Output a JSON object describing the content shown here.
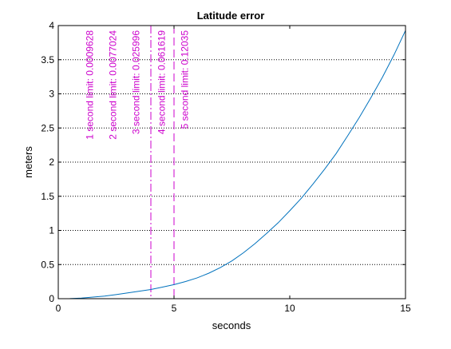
{
  "chart_data": {
    "type": "line",
    "title": "Latitude error",
    "xlabel": "seconds",
    "ylabel": "meters",
    "xlim": [
      0,
      15
    ],
    "ylim": [
      0,
      4
    ],
    "xticks": [
      0,
      5,
      10,
      15
    ],
    "xtick_labels": [
      "0",
      "5",
      "10",
      "15"
    ],
    "yticks": [
      0,
      0.5,
      1,
      1.5,
      2,
      2.5,
      3,
      3.5,
      4
    ],
    "ytick_labels": [
      "0",
      "0.5",
      "1",
      "1.5",
      "2",
      "2.5",
      "3",
      "3.5",
      "4"
    ],
    "grid": "y-dotted",
    "series": [
      {
        "color": "#0072bd",
        "x": [
          0.5,
          1,
          1.5,
          2,
          2.5,
          3,
          3.5,
          4,
          4.5,
          5,
          5.5,
          6,
          6.5,
          7,
          7.5,
          8,
          8.5,
          9,
          9.5,
          10,
          10.5,
          11,
          11.5,
          12,
          12.5,
          13,
          13.5,
          14,
          14.5,
          15
        ],
        "y": [
          0.0014,
          0.0094,
          0.0227,
          0.0381,
          0.0598,
          0.0842,
          0.1101,
          0.1344,
          0.1698,
          0.2067,
          0.2519,
          0.3048,
          0.3727,
          0.4556,
          0.5536,
          0.6728,
          0.8068,
          0.9556,
          1.1119,
          1.2881,
          1.4711,
          1.6773,
          1.8943,
          2.1238,
          2.3845,
          2.6517,
          2.9398,
          3.2413,
          3.5683,
          3.9277
        ]
      }
    ],
    "vertical_lines": [
      {
        "x": 4,
        "style": "dash-dot",
        "color": "#cc00cc"
      },
      {
        "x": 5,
        "style": "dashed",
        "color": "#cc00cc"
      }
    ],
    "annotations": [
      {
        "text": "1 second limit: 0.0009628",
        "x": 1.5
      },
      {
        "text": "2 second limit: 0.0077024",
        "x": 2.5
      },
      {
        "text": "3 second limit: 0.025996",
        "x": 3.5
      },
      {
        "text": "4 second limit: 0.061619",
        "x": 4.6
      },
      {
        "text": "5 second limit: 0.12035",
        "x": 5.6
      }
    ],
    "annotation_color": "#cc00cc"
  }
}
